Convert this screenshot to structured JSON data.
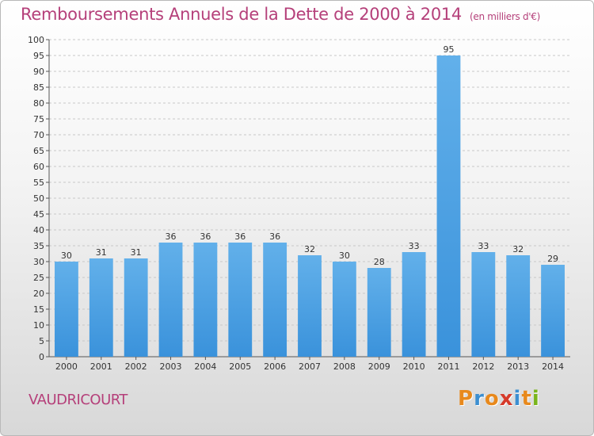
{
  "title": "Remboursements Annuels de la Dette de 2000 à 2014",
  "subtitle": "(en milliers d'€)",
  "commune": "VAUDRICOURT",
  "logo": {
    "text": "Proxiti",
    "colors": [
      "#e8891c",
      "#3c8fd1",
      "#e8891c",
      "#d63a2a",
      "#3c8fd1",
      "#e8891c",
      "#7ab51d"
    ]
  },
  "colors": {
    "bar": "#3a92db",
    "bar_light": "#62b0ea",
    "title": "#b5407a",
    "grid": "#c8c8c8"
  },
  "chart_data": {
    "type": "bar",
    "title": "Remboursements Annuels de la Dette de 2000 à 2014",
    "subtitle": "(en milliers d'€)",
    "categories": [
      "2000",
      "2001",
      "2002",
      "2003",
      "2004",
      "2005",
      "2006",
      "2007",
      "2008",
      "2009",
      "2010",
      "2011",
      "2012",
      "2013",
      "2014"
    ],
    "values": [
      30,
      31,
      31,
      36,
      36,
      36,
      36,
      32,
      30,
      28,
      33,
      95,
      33,
      32,
      29
    ],
    "ylim": [
      0,
      100
    ],
    "ytick_step": 5,
    "grid": true,
    "data_labels": true
  }
}
